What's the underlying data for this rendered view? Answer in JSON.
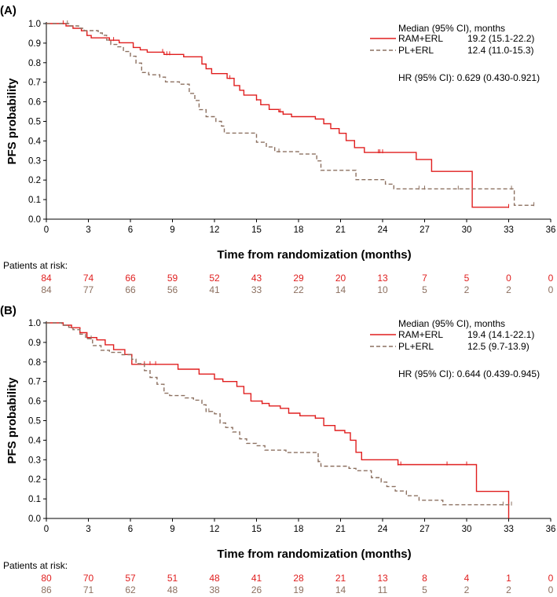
{
  "chart_data": [
    {
      "type": "line",
      "panel_label": "(A)",
      "xlabel": "Time from randomization (months)",
      "ylabel": "PFS probability",
      "xlim": [
        0,
        36
      ],
      "ylim": [
        0,
        1
      ],
      "x_ticks": [
        "0",
        "3",
        "6",
        "9",
        "12",
        "15",
        "18",
        "21",
        "24",
        "27",
        "30",
        "33",
        "36"
      ],
      "y_ticks": [
        "0.0",
        "0.1",
        "0.2",
        "0.3",
        "0.4",
        "0.5",
        "0.6",
        "0.7",
        "0.8",
        "0.9",
        "1.0"
      ],
      "legend_title": "Median (95% CI), months",
      "hr_text": "HR (95% CI): 0.629 (0.430-0.921)",
      "risk_title": "Patients at risk:",
      "series": [
        {
          "name": "RAM+ERL",
          "median_text": "19.2 (15.1-22.2)",
          "color": "#e01e1e",
          "dash": false,
          "steps": [
            [
              0,
              1.0
            ],
            [
              1.4,
              0.988
            ],
            [
              1.9,
              0.976
            ],
            [
              2.5,
              0.963
            ],
            [
              2.9,
              0.939
            ],
            [
              3.2,
              0.927
            ],
            [
              4.2,
              0.927
            ],
            [
              4.5,
              0.915
            ],
            [
              5.2,
              0.902
            ],
            [
              6.2,
              0.878
            ],
            [
              6.7,
              0.866
            ],
            [
              7.2,
              0.854
            ],
            [
              8.4,
              0.842
            ],
            [
              9.8,
              0.83
            ],
            [
              11.1,
              0.793
            ],
            [
              11.4,
              0.769
            ],
            [
              11.8,
              0.744
            ],
            [
              12.9,
              0.72
            ],
            [
              13.4,
              0.683
            ],
            [
              13.8,
              0.659
            ],
            [
              14.1,
              0.634
            ],
            [
              15.0,
              0.61
            ],
            [
              15.3,
              0.585
            ],
            [
              15.9,
              0.561
            ],
            [
              16.6,
              0.549
            ],
            [
              16.9,
              0.537
            ],
            [
              17.5,
              0.524
            ],
            [
              19.2,
              0.512
            ],
            [
              19.8,
              0.488
            ],
            [
              20.3,
              0.463
            ],
            [
              20.9,
              0.439
            ],
            [
              21.4,
              0.402
            ],
            [
              22.0,
              0.366
            ],
            [
              22.7,
              0.341
            ],
            [
              24.1,
              0.341
            ],
            [
              25.3,
              0.341
            ],
            [
              26.4,
              0.305
            ],
            [
              27.5,
              0.244
            ],
            [
              29.5,
              0.244
            ],
            [
              30.4,
              0.061
            ],
            [
              33.0,
              0.061
            ]
          ],
          "censor_x": [
            1.2,
            4.8,
            8.3,
            8.6,
            8.8,
            13.1,
            15.0,
            16.7,
            16.9,
            23.7,
            23.8,
            24.0,
            33.0
          ],
          "at_risk": [
            "84",
            "74",
            "66",
            "59",
            "52",
            "43",
            "29",
            "20",
            "13",
            "7",
            "5",
            "0",
            "0"
          ]
        },
        {
          "name": "PL+ERL",
          "median_text": "12.4 (11.0-15.3)",
          "color": "#8c7060",
          "dash": true,
          "steps": [
            [
              0,
              1.0
            ],
            [
              1.6,
              0.988
            ],
            [
              2.3,
              0.976
            ],
            [
              2.7,
              0.964
            ],
            [
              3.7,
              0.952
            ],
            [
              4.0,
              0.94
            ],
            [
              4.3,
              0.916
            ],
            [
              4.6,
              0.893
            ],
            [
              5.1,
              0.881
            ],
            [
              5.5,
              0.857
            ],
            [
              6.0,
              0.833
            ],
            [
              6.4,
              0.798
            ],
            [
              6.8,
              0.75
            ],
            [
              7.3,
              0.738
            ],
            [
              8.1,
              0.726
            ],
            [
              8.5,
              0.702
            ],
            [
              9.5,
              0.69
            ],
            [
              10.2,
              0.643
            ],
            [
              10.6,
              0.607
            ],
            [
              10.9,
              0.56
            ],
            [
              11.4,
              0.524
            ],
            [
              12.1,
              0.5
            ],
            [
              12.5,
              0.476
            ],
            [
              12.7,
              0.44
            ],
            [
              13.9,
              0.44
            ],
            [
              14.5,
              0.44
            ],
            [
              15.0,
              0.393
            ],
            [
              15.7,
              0.369
            ],
            [
              16.3,
              0.345
            ],
            [
              16.6,
              0.345
            ],
            [
              18.0,
              0.333
            ],
            [
              19.3,
              0.298
            ],
            [
              19.6,
              0.25
            ],
            [
              21.6,
              0.25
            ],
            [
              22.1,
              0.202
            ],
            [
              23.6,
              0.202
            ],
            [
              24.2,
              0.179
            ],
            [
              24.8,
              0.155
            ],
            [
              26.6,
              0.155
            ],
            [
              27.0,
              0.155
            ],
            [
              27.9,
              0.155
            ],
            [
              29.4,
              0.155
            ],
            [
              30.3,
              0.155
            ],
            [
              33.2,
              0.155
            ],
            [
              33.4,
              0.071
            ],
            [
              34.8,
              0.071
            ]
          ],
          "censor_x": [
            1.5,
            16.6,
            26.6,
            27.0,
            29.4,
            33.2,
            34.8
          ],
          "at_risk": [
            "84",
            "77",
            "66",
            "56",
            "41",
            "33",
            "22",
            "14",
            "10",
            "5",
            "2",
            "2",
            "0"
          ]
        }
      ]
    },
    {
      "type": "line",
      "panel_label": "(B)",
      "xlabel": "Time from randomization (months)",
      "ylabel": "PFS probability",
      "xlim": [
        0,
        36
      ],
      "ylim": [
        0,
        1
      ],
      "x_ticks": [
        "0",
        "3",
        "6",
        "9",
        "12",
        "15",
        "18",
        "21",
        "24",
        "27",
        "30",
        "33",
        "36"
      ],
      "y_ticks": [
        "0.0",
        "0.1",
        "0.2",
        "0.3",
        "0.4",
        "0.5",
        "0.6",
        "0.7",
        "0.8",
        "0.9",
        "1.0"
      ],
      "legend_title": "Median (95% CI), months",
      "hr_text": "HR (95% CI): 0.644 (0.439-0.945)",
      "risk_title": "Patients at risk:",
      "series": [
        {
          "name": "RAM+ERL",
          "median_text": "19.4 (14.1-22.1)",
          "color": "#e01e1e",
          "dash": false,
          "steps": [
            [
              0,
              1.0
            ],
            [
              1.2,
              0.988
            ],
            [
              1.8,
              0.975
            ],
            [
              2.4,
              0.95
            ],
            [
              2.9,
              0.925
            ],
            [
              3.6,
              0.913
            ],
            [
              4.2,
              0.888
            ],
            [
              4.8,
              0.863
            ],
            [
              5.6,
              0.838
            ],
            [
              6.1,
              0.788
            ],
            [
              7.0,
              0.788
            ],
            [
              9.4,
              0.763
            ],
            [
              10.9,
              0.738
            ],
            [
              12.0,
              0.713
            ],
            [
              12.6,
              0.7
            ],
            [
              13.6,
              0.675
            ],
            [
              14.1,
              0.638
            ],
            [
              14.6,
              0.6
            ],
            [
              15.4,
              0.588
            ],
            [
              15.9,
              0.575
            ],
            [
              16.7,
              0.563
            ],
            [
              17.3,
              0.538
            ],
            [
              18.1,
              0.525
            ],
            [
              19.2,
              0.513
            ],
            [
              19.8,
              0.475
            ],
            [
              20.6,
              0.45
            ],
            [
              21.3,
              0.438
            ],
            [
              21.7,
              0.4
            ],
            [
              22.1,
              0.338
            ],
            [
              22.5,
              0.3
            ],
            [
              25.1,
              0.275
            ],
            [
              25.6,
              0.275
            ],
            [
              28.6,
              0.275
            ],
            [
              30.7,
              0.138
            ],
            [
              33.0,
              0.0
            ]
          ],
          "censor_x": [
            7.0,
            7.4,
            7.8,
            12.0,
            15.4,
            19.2,
            25.1,
            25.3,
            28.6,
            30.0
          ],
          "at_risk": [
            "80",
            "70",
            "57",
            "51",
            "48",
            "41",
            "28",
            "21",
            "13",
            "8",
            "4",
            "1",
            "0"
          ]
        },
        {
          "name": "PL+ERL",
          "median_text": "12.5 (9.7-13.9)",
          "color": "#8c7060",
          "dash": true,
          "steps": [
            [
              0,
              1.0
            ],
            [
              1.1,
              0.988
            ],
            [
              1.6,
              0.977
            ],
            [
              1.9,
              0.965
            ],
            [
              2.4,
              0.942
            ],
            [
              2.8,
              0.919
            ],
            [
              3.3,
              0.884
            ],
            [
              3.9,
              0.86
            ],
            [
              4.5,
              0.849
            ],
            [
              5.4,
              0.837
            ],
            [
              6.1,
              0.814
            ],
            [
              6.4,
              0.791
            ],
            [
              7.0,
              0.756
            ],
            [
              7.4,
              0.721
            ],
            [
              7.9,
              0.686
            ],
            [
              8.4,
              0.64
            ],
            [
              8.8,
              0.628
            ],
            [
              9.9,
              0.616
            ],
            [
              10.5,
              0.605
            ],
            [
              11.1,
              0.581
            ],
            [
              11.4,
              0.547
            ],
            [
              12.0,
              0.535
            ],
            [
              12.4,
              0.488
            ],
            [
              12.8,
              0.465
            ],
            [
              13.3,
              0.442
            ],
            [
              13.8,
              0.407
            ],
            [
              14.3,
              0.384
            ],
            [
              15.0,
              0.372
            ],
            [
              15.6,
              0.349
            ],
            [
              17.1,
              0.337
            ],
            [
              19.4,
              0.291
            ],
            [
              19.6,
              0.267
            ],
            [
              21.6,
              0.256
            ],
            [
              22.1,
              0.244
            ],
            [
              23.2,
              0.209
            ],
            [
              23.9,
              0.186
            ],
            [
              24.3,
              0.163
            ],
            [
              24.9,
              0.14
            ],
            [
              25.7,
              0.116
            ],
            [
              26.6,
              0.093
            ],
            [
              28.3,
              0.07
            ],
            [
              32.6,
              0.07
            ],
            [
              33.2,
              0.07
            ]
          ],
          "censor_x": [
            3.2,
            11.6,
            19.4,
            32.6,
            33.2
          ],
          "at_risk": [
            "86",
            "71",
            "62",
            "48",
            "38",
            "26",
            "19",
            "14",
            "11",
            "5",
            "2",
            "2",
            "0"
          ]
        }
      ]
    }
  ]
}
